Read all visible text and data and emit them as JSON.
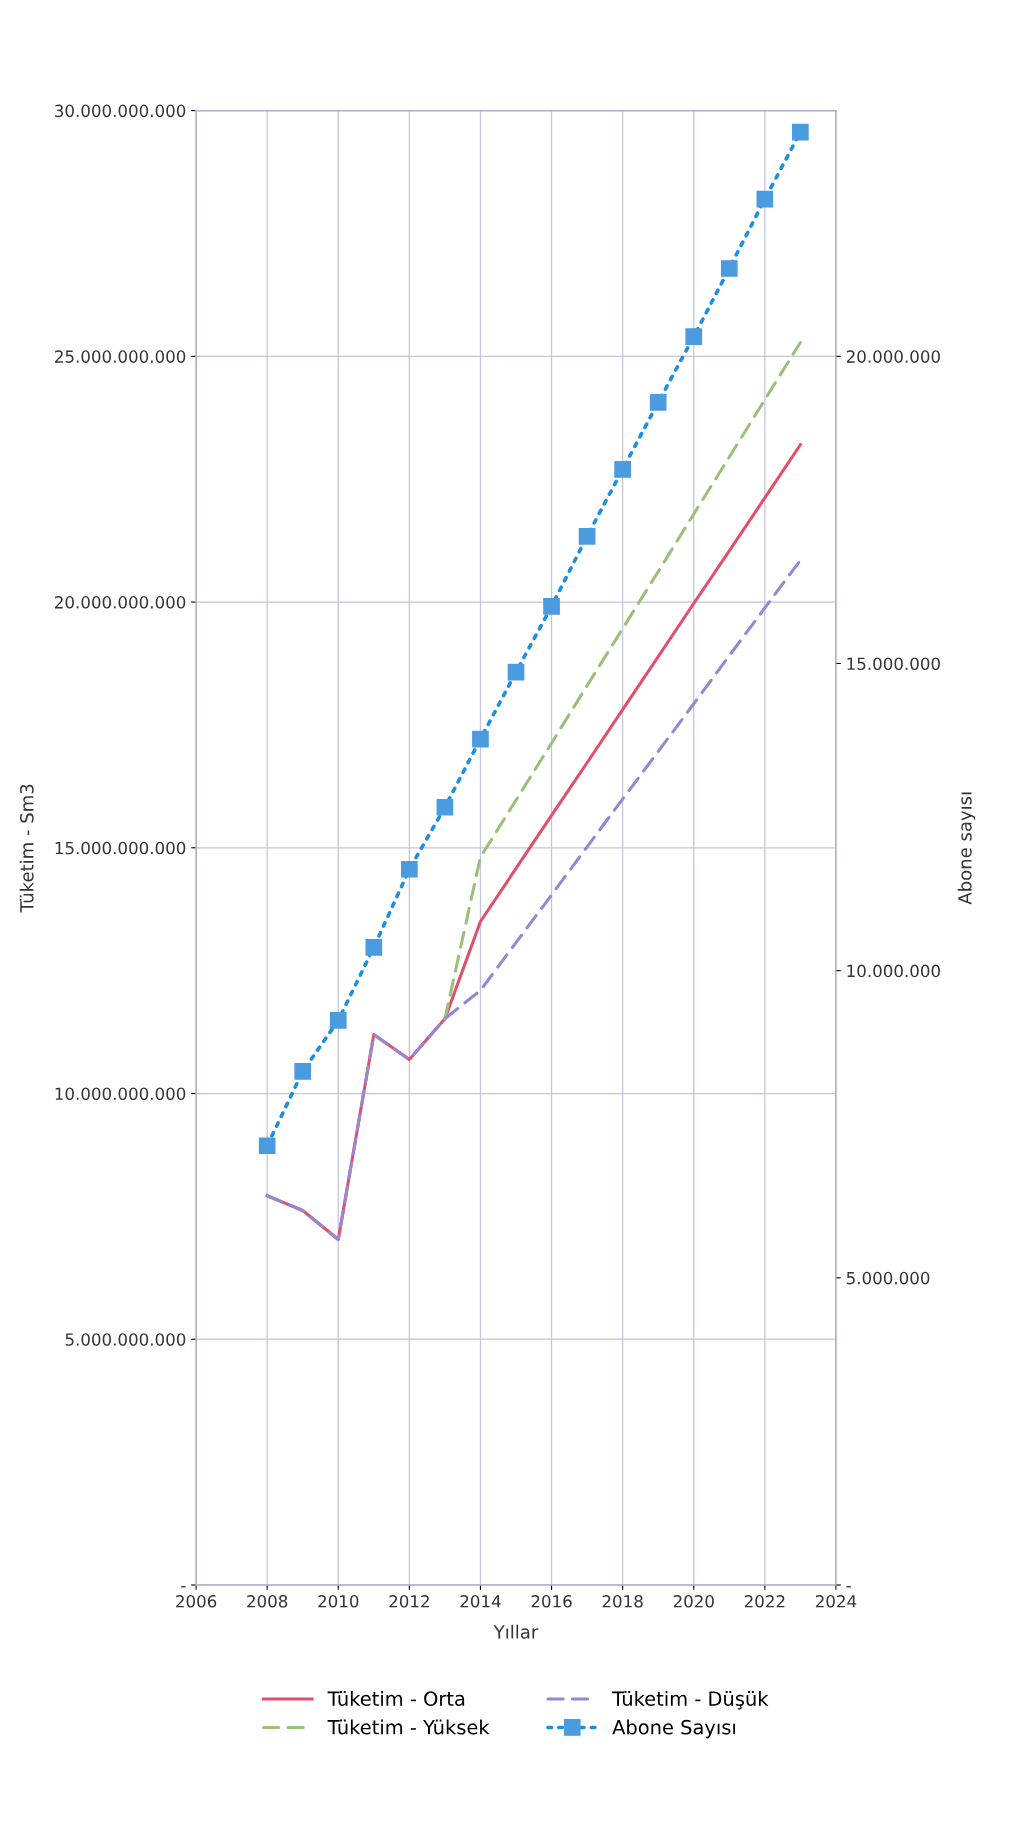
{
  "chart_data": {
    "type": "line",
    "xlabel": "Yıllar",
    "ylabel": "Tüketim - Sm3",
    "y2label": "Abone sayısı",
    "xlim": [
      2006,
      2024
    ],
    "xticks": [
      2006,
      2008,
      2010,
      2012,
      2014,
      2016,
      2018,
      2020,
      2022,
      2024
    ],
    "ylim": [
      0,
      30000000000
    ],
    "yticks": [
      {
        "value": 0,
        "label": "-"
      },
      {
        "value": 5000000000,
        "label": "5.000.000.000"
      },
      {
        "value": 10000000000,
        "label": "10.000.000.000"
      },
      {
        "value": 15000000000,
        "label": "15.000.000.000"
      },
      {
        "value": 20000000000,
        "label": "20.000.000.000"
      },
      {
        "value": 25000000000,
        "label": "25.000.000.000"
      },
      {
        "value": 30000000000,
        "label": "30.000.000.000"
      }
    ],
    "y2lim": [
      0,
      24000000
    ],
    "y2ticks": [
      {
        "value": 0,
        "label": "-"
      },
      {
        "value": 5000000,
        "label": "5.000.000"
      },
      {
        "value": 10000000,
        "label": "10.000.000"
      },
      {
        "value": 15000000,
        "label": "15.000.000"
      },
      {
        "value": 20000000,
        "label": "20.000.000"
      }
    ],
    "grid": true,
    "legend": "bottom",
    "series": [
      {
        "name": "Tüketim - Orta",
        "color": "#e0506a",
        "line_style": "solid",
        "marker": "none",
        "x": [
          2008,
          2009,
          2010,
          2011,
          2012,
          2013,
          2014,
          2015,
          2016,
          2017,
          2018,
          2019,
          2020,
          2021,
          2022,
          2023
        ],
        "values": [
          7920000000,
          7620000000,
          7030000000,
          11200000000,
          10690000000,
          11520000000,
          13500000000,
          14580000000,
          15660000000,
          16730000000,
          17810000000,
          18890000000,
          19970000000,
          21040000000,
          22120000000,
          23200000000
        ]
      },
      {
        "name": "Tüketim - Yüksek",
        "color": "#9bc07a",
        "line_style": "dashed",
        "marker": "none",
        "x": [
          2013,
          2014,
          2015,
          2016,
          2017,
          2018,
          2019,
          2020,
          2021,
          2022,
          2023
        ],
        "values": [
          11520000000,
          14810000000,
          15970000000,
          17130000000,
          18300000000,
          19460000000,
          20620000000,
          21790000000,
          22950000000,
          24120000000,
          25280000000
        ]
      },
      {
        "name": "Tüketim - Düşük",
        "color": "#9a86d0",
        "line_style": "dashed",
        "marker": "none",
        "x": [
          2008,
          2009,
          2010,
          2011,
          2012,
          2013,
          2014,
          2015,
          2016,
          2017,
          2018,
          2019,
          2020,
          2021,
          2022,
          2023
        ],
        "values": [
          7920000000,
          7620000000,
          7030000000,
          11200000000,
          10690000000,
          11520000000,
          12100000000,
          13070000000,
          14040000000,
          15020000000,
          15990000000,
          16960000000,
          17930000000,
          18910000000,
          19880000000,
          20850000000
        ]
      },
      {
        "name": "Abone Sayısı",
        "color": "#1e8fe0",
        "line_style": "dotted",
        "marker": "square",
        "axis": "y2",
        "x": [
          2008,
          2009,
          2010,
          2011,
          2012,
          2013,
          2014,
          2015,
          2016,
          2017,
          2018,
          2019,
          2020,
          2021,
          2022,
          2023
        ],
        "values": [
          7150000,
          8360000,
          9190000,
          10380000,
          11650000,
          12660000,
          13770000,
          14860000,
          15930000,
          17070000,
          18160000,
          19250000,
          20320000,
          21430000,
          22560000,
          23650000
        ]
      }
    ]
  }
}
